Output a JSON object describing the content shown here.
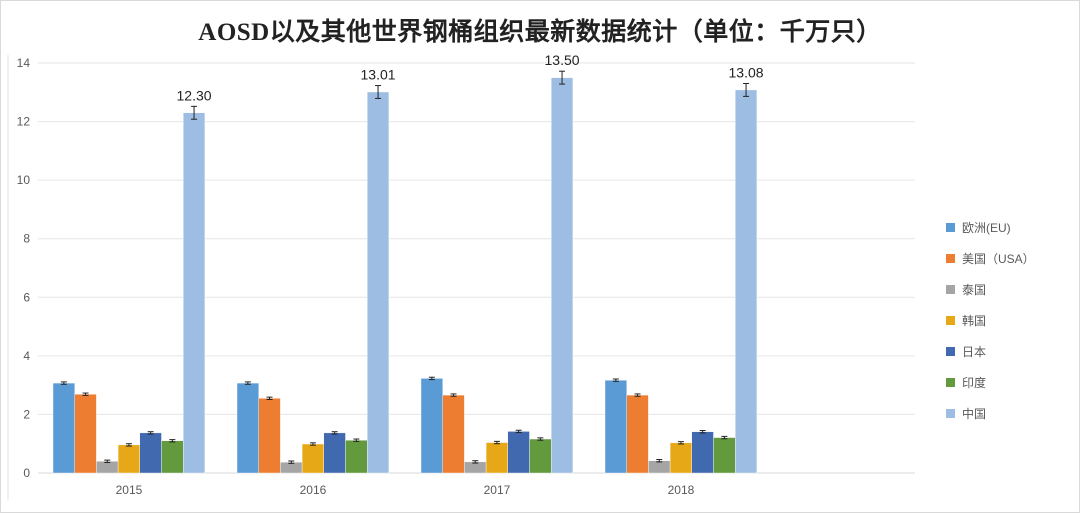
{
  "chart_data": {
    "type": "bar",
    "title": "AOSD以及其他世界钢桶组织最新数据统计（单位：千万只）",
    "xlabel": "",
    "ylabel": "",
    "ylim": [
      0,
      14
    ],
    "yticks": [
      0,
      2,
      4,
      6,
      8,
      10,
      12,
      14
    ],
    "grid": true,
    "legend_position": "right",
    "error_bars": true,
    "categories": [
      "2015",
      "2016",
      "2017",
      "2018"
    ],
    "series": [
      {
        "name": "欧洲(EU)",
        "color": "#5b9bd5",
        "values": [
          3.07,
          3.07,
          3.23,
          3.17
        ]
      },
      {
        "name": "美国（USA）",
        "color": "#ed7d31",
        "values": [
          2.69,
          2.55,
          2.66,
          2.66
        ]
      },
      {
        "name": "泰国",
        "color": "#a5a5a5",
        "values": [
          0.4,
          0.37,
          0.38,
          0.42
        ]
      },
      {
        "name": "韩国",
        "color": "#e6a817",
        "values": [
          0.96,
          0.99,
          1.04,
          1.03
        ]
      },
      {
        "name": "日本",
        "color": "#4169b0",
        "values": [
          1.37,
          1.37,
          1.42,
          1.41
        ]
      },
      {
        "name": "印度",
        "color": "#639a3e",
        "values": [
          1.1,
          1.12,
          1.16,
          1.21
        ]
      },
      {
        "name": "中国",
        "color": "#9dbde3",
        "values": [
          12.3,
          13.01,
          13.5,
          13.08
        ],
        "data_labels": [
          "12.30",
          "13.01",
          "13.50",
          "13.08"
        ]
      }
    ]
  }
}
